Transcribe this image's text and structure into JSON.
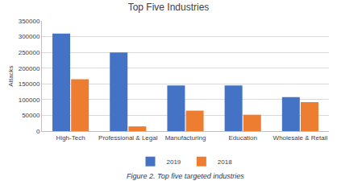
{
  "chart_data": {
    "type": "bar",
    "title": "Top Five Industries",
    "y_label": "Attacks",
    "caption": "Figure 2. Top five targeted industries",
    "categories": [
      "High-Tech",
      "Professional & Legal",
      "Manufacturing",
      "Education",
      "Wholesale & Retail"
    ],
    "series": [
      {
        "name": "2019",
        "color": "#4472c4",
        "values": [
          310000,
          250000,
          145000,
          145000,
          108000
        ]
      },
      {
        "name": "2018",
        "color": "#ed7d31",
        "values": [
          165000,
          15000,
          65000,
          52000,
          92000
        ]
      }
    ],
    "ylim": [
      0,
      350000
    ],
    "yticks": [
      0,
      50000,
      100000,
      150000,
      200000,
      250000,
      300000,
      350000
    ],
    "grid": true,
    "legend": "bottom"
  }
}
